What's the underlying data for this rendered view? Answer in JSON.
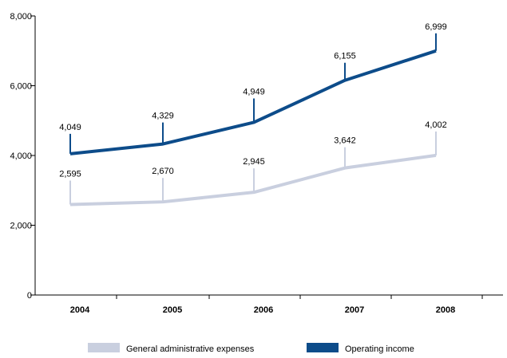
{
  "chart_data": {
    "type": "line",
    "categories": [
      "2004",
      "2005",
      "2006",
      "2007",
      "2008"
    ],
    "y_ticks": [
      "0",
      "2,000",
      "4,000",
      "6,000",
      "8,000"
    ],
    "ylim": [
      0,
      8000
    ],
    "grid": false,
    "legend_position": "bottom",
    "series": [
      {
        "name": "General administrative expenses",
        "color": "#c9cfdf",
        "values": [
          2595,
          2670,
          2945,
          3642,
          4002
        ],
        "labels": [
          "2,595",
          "2,670",
          "2,945",
          "3,642",
          "4,002"
        ]
      },
      {
        "name": "Operating income",
        "color": "#0d4c8a",
        "values": [
          4049,
          4329,
          4949,
          6155,
          6999
        ],
        "labels": [
          "4,049",
          "4,329",
          "4,949",
          "6,155",
          "6,999"
        ]
      }
    ]
  }
}
